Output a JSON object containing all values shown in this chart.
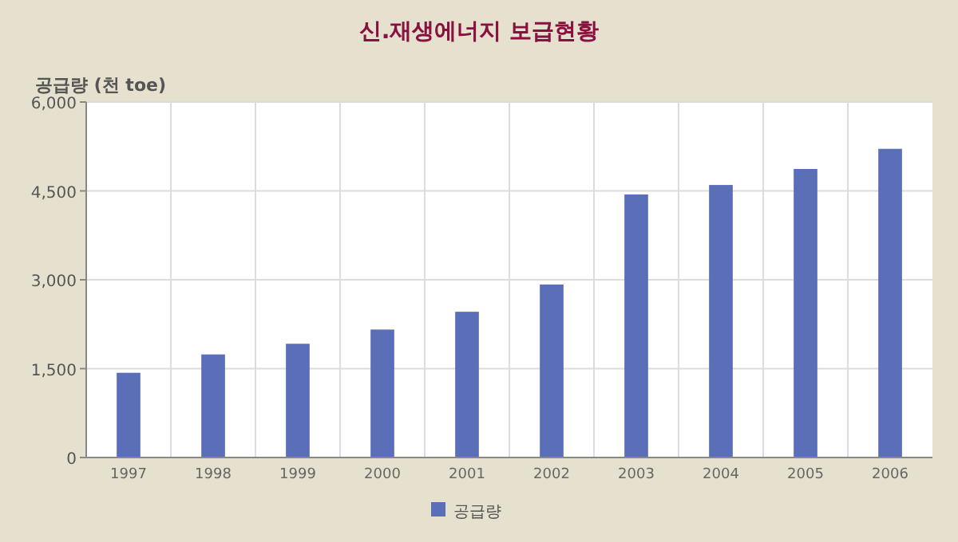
{
  "chart_data": {
    "type": "bar",
    "title": "신.재생에너지 보급현황",
    "ylabel": "공급량 (천 toe)",
    "categories": [
      "1997",
      "1998",
      "1999",
      "2000",
      "2001",
      "2002",
      "2003",
      "2004",
      "2005",
      "2006"
    ],
    "series": [
      {
        "name": "공급량",
        "color": "#5b6fb8",
        "values": [
          1430,
          1740,
          1920,
          2160,
          2460,
          2920,
          4440,
          4600,
          4870,
          5210
        ]
      }
    ],
    "ylim": [
      0,
      6000
    ],
    "yticks": [
      {
        "value": 0,
        "label": "0"
      },
      {
        "value": 1500,
        "label": "1,500"
      },
      {
        "value": 3000,
        "label": "3,000"
      },
      {
        "value": 4500,
        "label": "4,500"
      },
      {
        "value": 6000,
        "label": "6,000"
      }
    ],
    "grid": true,
    "legend": "bottom"
  }
}
